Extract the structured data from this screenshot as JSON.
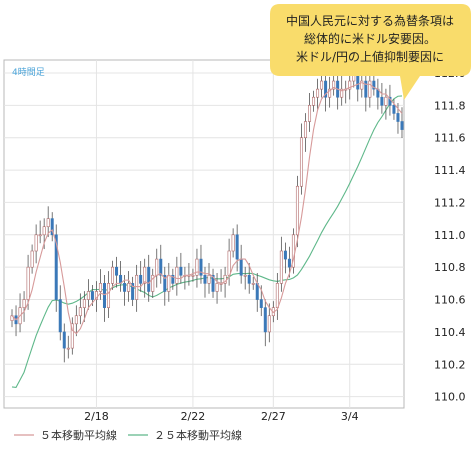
{
  "chart_data": {
    "type": "candlestick",
    "period_label": "4時間足",
    "y_ticks": [
      110.0,
      110.2,
      110.4,
      110.6,
      110.8,
      111.0,
      111.2,
      111.4,
      111.6,
      111.8,
      112.0
    ],
    "ylim": [
      109.93,
      112.08
    ],
    "x_ticks": [
      {
        "label": "2/18",
        "index": 21
      },
      {
        "label": "2/22",
        "index": 45
      },
      {
        "label": "2/27",
        "index": 65
      },
      {
        "label": "3/4",
        "index": 84
      }
    ],
    "grid": true,
    "legend": {
      "placement": "bottom",
      "items": [
        {
          "label": "５本移動平均線",
          "color": "#d79a9a"
        },
        {
          "label": "２５本移動平均線",
          "color": "#5fb88a"
        }
      ]
    },
    "annotation": {
      "lines": [
        "中国人民元に対する為替条項は",
        "総体的に米ドル安要因。",
        "米ドル/円の上値抑制要因に"
      ],
      "background": "#f9dc6b",
      "placement": "top-right"
    },
    "candle_colors": {
      "up": "#ffffff",
      "down": "#3a78b8",
      "wick": "#555555"
    },
    "close": [
      110.5,
      110.45,
      110.55,
      110.6,
      110.8,
      110.9,
      111.0,
      111.0,
      111.05,
      111.1,
      111.0,
      110.6,
      110.4,
      110.3,
      110.3,
      110.45,
      110.5,
      110.55,
      110.6,
      110.65,
      110.6,
      110.65,
      110.7,
      110.55,
      110.7,
      110.8,
      110.75,
      110.7,
      110.65,
      110.7,
      110.6,
      110.75,
      110.7,
      110.8,
      110.65,
      110.75,
      110.85,
      110.75,
      110.65,
      110.75,
      110.7,
      110.8,
      110.75,
      110.75,
      110.75,
      110.75,
      110.85,
      110.75,
      110.7,
      110.75,
      110.65,
      110.7,
      110.7,
      110.75,
      110.9,
      111.0,
      110.85,
      110.75,
      110.75,
      110.7,
      110.7,
      110.6,
      110.55,
      110.4,
      110.5,
      110.55,
      110.7,
      110.9,
      110.85,
      110.8,
      111.0,
      111.3,
      111.6,
      111.7,
      111.8,
      111.85,
      111.9,
      111.95,
      111.85,
      111.9,
      111.95,
      111.85,
      111.9,
      111.9,
      111.95,
      112.0,
      111.9,
      111.95,
      111.85,
      111.95,
      111.9,
      111.85,
      111.8,
      111.85,
      111.8,
      111.75,
      111.7,
      111.65
    ]
  }
}
